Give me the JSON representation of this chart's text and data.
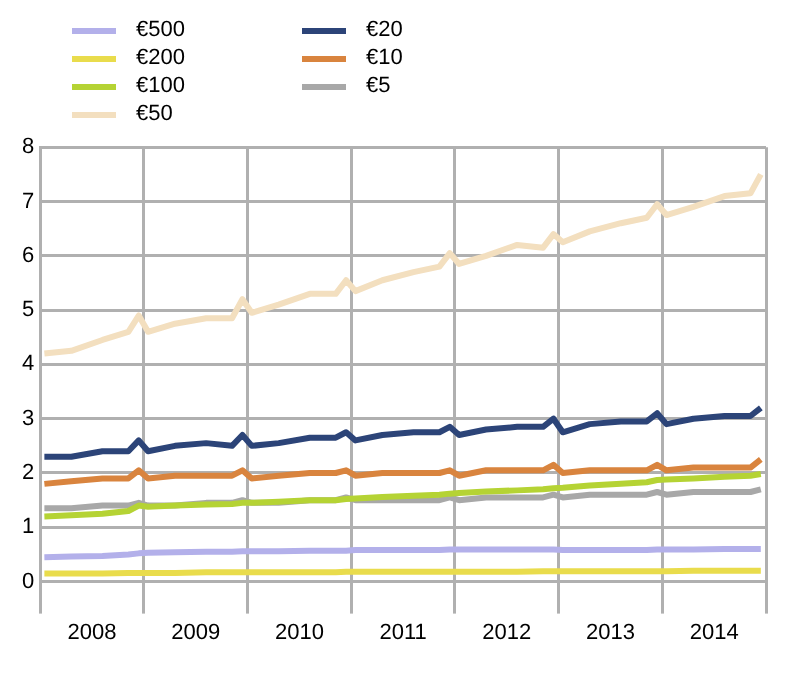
{
  "chart_data": {
    "type": "line",
    "x": [
      2008.04,
      2008.3,
      2008.6,
      2008.85,
      2008.95,
      2009.04,
      2009.3,
      2009.6,
      2009.85,
      2009.95,
      2010.04,
      2010.3,
      2010.6,
      2010.85,
      2010.95,
      2011.04,
      2011.3,
      2011.6,
      2011.85,
      2011.95,
      2012.04,
      2012.3,
      2012.6,
      2012.85,
      2012.95,
      2013.04,
      2013.3,
      2013.6,
      2013.85,
      2013.95,
      2014.04,
      2014.3,
      2014.6,
      2014.85,
      2014.95
    ],
    "series": [
      {
        "name": "€500",
        "color": "#b3b0ea",
        "values": [
          0.45,
          0.46,
          0.47,
          0.5,
          0.52,
          0.53,
          0.54,
          0.55,
          0.55,
          0.56,
          0.56,
          0.56,
          0.57,
          0.57,
          0.57,
          0.58,
          0.58,
          0.58,
          0.58,
          0.59,
          0.59,
          0.59,
          0.59,
          0.59,
          0.59,
          0.58,
          0.58,
          0.58,
          0.58,
          0.59,
          0.59,
          0.59,
          0.6,
          0.6,
          0.6
        ]
      },
      {
        "name": "€200",
        "color": "#e9dc4c",
        "values": [
          0.15,
          0.15,
          0.15,
          0.16,
          0.16,
          0.16,
          0.16,
          0.17,
          0.17,
          0.17,
          0.17,
          0.17,
          0.17,
          0.17,
          0.18,
          0.18,
          0.18,
          0.18,
          0.18,
          0.18,
          0.18,
          0.18,
          0.18,
          0.19,
          0.19,
          0.19,
          0.19,
          0.19,
          0.19,
          0.19,
          0.19,
          0.2,
          0.2,
          0.2,
          0.2
        ]
      },
      {
        "name": "€100",
        "color": "#b5d334",
        "values": [
          1.2,
          1.22,
          1.25,
          1.3,
          1.4,
          1.38,
          1.4,
          1.42,
          1.43,
          1.45,
          1.45,
          1.47,
          1.5,
          1.5,
          1.52,
          1.53,
          1.56,
          1.58,
          1.6,
          1.62,
          1.63,
          1.66,
          1.68,
          1.7,
          1.72,
          1.73,
          1.77,
          1.8,
          1.83,
          1.87,
          1.88,
          1.9,
          1.93,
          1.95,
          1.98
        ]
      },
      {
        "name": "€50",
        "color": "#f3dfbf",
        "values": [
          4.2,
          4.25,
          4.45,
          4.6,
          4.9,
          4.6,
          4.75,
          4.85,
          4.85,
          5.2,
          4.95,
          5.1,
          5.3,
          5.3,
          5.55,
          5.35,
          5.55,
          5.7,
          5.8,
          6.05,
          5.85,
          6.0,
          6.2,
          6.15,
          6.4,
          6.25,
          6.45,
          6.6,
          6.7,
          6.95,
          6.75,
          6.9,
          7.1,
          7.15,
          7.5
        ]
      },
      {
        "name": "€20",
        "color": "#2c4478",
        "values": [
          2.3,
          2.3,
          2.4,
          2.4,
          2.6,
          2.4,
          2.5,
          2.55,
          2.5,
          2.7,
          2.5,
          2.55,
          2.65,
          2.65,
          2.75,
          2.6,
          2.7,
          2.75,
          2.75,
          2.85,
          2.7,
          2.8,
          2.85,
          2.85,
          3.0,
          2.75,
          2.9,
          2.95,
          2.95,
          3.1,
          2.9,
          3.0,
          3.05,
          3.05,
          3.2
        ]
      },
      {
        "name": "€10",
        "color": "#d9843e",
        "values": [
          1.8,
          1.85,
          1.9,
          1.9,
          2.05,
          1.9,
          1.95,
          1.95,
          1.95,
          2.05,
          1.9,
          1.95,
          2.0,
          2.0,
          2.05,
          1.95,
          2.0,
          2.0,
          2.0,
          2.05,
          1.95,
          2.05,
          2.05,
          2.05,
          2.15,
          2.0,
          2.05,
          2.05,
          2.05,
          2.15,
          2.05,
          2.1,
          2.1,
          2.1,
          2.25
        ]
      },
      {
        "name": "€5",
        "color": "#a8a8a8",
        "values": [
          1.35,
          1.35,
          1.4,
          1.4,
          1.45,
          1.4,
          1.4,
          1.45,
          1.45,
          1.5,
          1.45,
          1.45,
          1.5,
          1.5,
          1.55,
          1.5,
          1.5,
          1.5,
          1.5,
          1.55,
          1.5,
          1.55,
          1.55,
          1.55,
          1.6,
          1.55,
          1.6,
          1.6,
          1.6,
          1.65,
          1.6,
          1.65,
          1.65,
          1.65,
          1.7
        ]
      }
    ],
    "xlim": [
      2008,
      2015
    ],
    "xticks": [
      {
        "value": 2008,
        "label": null
      },
      {
        "value": 2008.5,
        "label": "2008"
      },
      {
        "value": 2009,
        "label": null
      },
      {
        "value": 2009.5,
        "label": "2009"
      },
      {
        "value": 2010,
        "label": null
      },
      {
        "value": 2010.5,
        "label": "2010"
      },
      {
        "value": 2011,
        "label": null
      },
      {
        "value": 2011.5,
        "label": "2011"
      },
      {
        "value": 2012,
        "label": null
      },
      {
        "value": 2012.5,
        "label": "2012"
      },
      {
        "value": 2013,
        "label": null
      },
      {
        "value": 2013.5,
        "label": "2013"
      },
      {
        "value": 2014,
        "label": null
      },
      {
        "value": 2014.5,
        "label": "2014"
      },
      {
        "value": 2015,
        "label": null
      }
    ],
    "ylim": [
      0,
      8
    ],
    "yticks": [
      0,
      1,
      2,
      3,
      4,
      5,
      6,
      7,
      8
    ],
    "grid": true,
    "legend": "top left"
  }
}
